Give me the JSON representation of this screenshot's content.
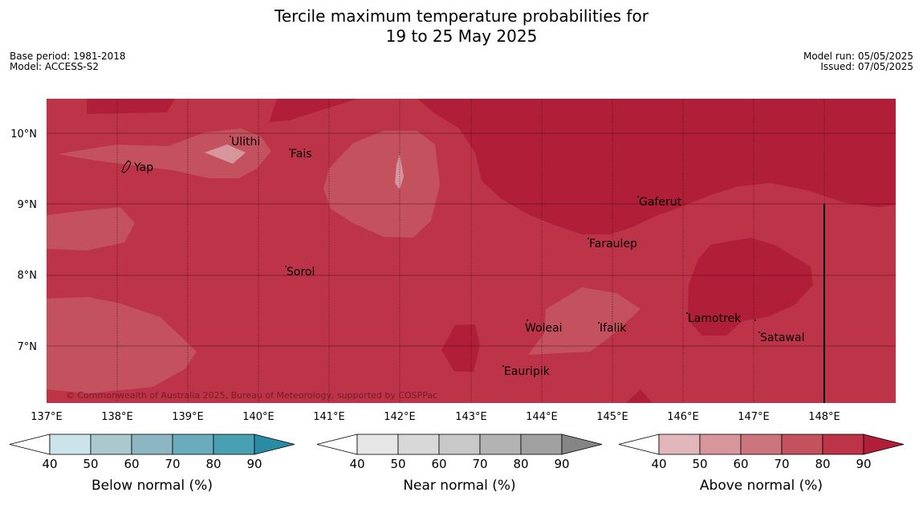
{
  "title": {
    "line1": "Tercile maximum temperature probabilities for",
    "line2": "19 to 25 May 2025"
  },
  "meta_left": {
    "base_period": "Base period: 1981-2018",
    "model": "Model: ACCESS-S2"
  },
  "meta_right": {
    "model_run": "Model run: 05/05/2025",
    "issued": "Issued: 07/05/2025"
  },
  "map": {
    "lat_labels": [
      "10°N",
      "9°N",
      "8°N",
      "7°N"
    ],
    "lon_labels": [
      "137°E",
      "138°E",
      "139°E",
      "140°E",
      "141°E",
      "142°E",
      "143°E",
      "144°E",
      "145°E",
      "146°E",
      "147°E",
      "148°E"
    ],
    "places": {
      "yap": "Yap",
      "ulithi": "Ulithi",
      "fais": "Fais",
      "gaferut": "Gaferut",
      "faraulep": "Faraulep",
      "sorol": "Sorol",
      "lamotrek": "Lamotrek",
      "satawal": "Satawal",
      "woleai": "Woleai",
      "ifalik": "Ifalik",
      "eauripik": "Eauripik"
    },
    "copyright": "© Commonwealth of Australia 2025, Bureau of Meteorology, supported by COSPPac",
    "colors": {
      "above_70_80": "#bd3448",
      "above_80_90": "#b01e38",
      "above_60_70": "#c3525e"
    }
  },
  "legends": {
    "ticks": [
      "40",
      "50",
      "60",
      "70",
      "80",
      "90"
    ],
    "below": {
      "label": "Below normal (%)",
      "colors": [
        "#ffffff",
        "#cce3e9",
        "#abc8cd",
        "#8bb6c2",
        "#6aacbd",
        "#4aa0b3",
        "#2a8ca4"
      ]
    },
    "near": {
      "label": "Near normal (%)",
      "colors": [
        "#ffffff",
        "#e6e6e6",
        "#d8d8d8",
        "#c8c8c8",
        "#b3b3b3",
        "#a0a0a0",
        "#858585"
      ]
    },
    "above": {
      "label": "Above normal (%)",
      "colors": [
        "#ffffff",
        "#e2b7bc",
        "#d7959c",
        "#cd757d",
        "#c3525e",
        "#bd3448",
        "#b01e38"
      ]
    }
  }
}
